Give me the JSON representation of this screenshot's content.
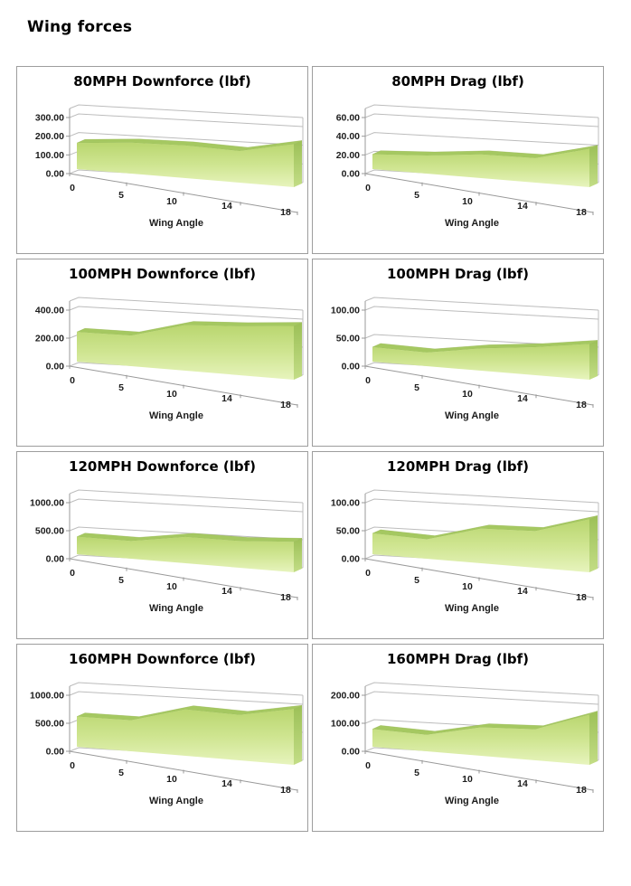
{
  "page": {
    "title": "Wing forces"
  },
  "colors": {
    "area_front_top": "#b9d66f",
    "area_front_mid": "#cfe591",
    "area_front_bottom": "#e7f4bd",
    "area_bevel": "#a5c861",
    "area_side_dark": "#9cc057",
    "area_side_light": "#c3dd86",
    "area_edge": "#8fae4d",
    "gridline": "#bcbcbc",
    "axis": "#999999",
    "chart_border": "#9d9d9d",
    "text": "#1c1c1c"
  },
  "chart_data": [
    {
      "type": "area",
      "style": "3d",
      "title": "80MPH Downforce (lbf)",
      "xlabel": "Wing Angle",
      "categories": [
        "0",
        "5",
        "10",
        "14",
        "18"
      ],
      "x_values": [
        0,
        5,
        10,
        14,
        18
      ],
      "values": [
        150,
        163,
        158,
        142,
        180
      ],
      "ylim": [
        0,
        300
      ],
      "yticks": [
        0,
        100,
        200,
        300
      ],
      "ytick_labels": [
        "0.00",
        "100.00",
        "200.00",
        "300.00"
      ],
      "grid": true,
      "legend": false
    },
    {
      "type": "area",
      "style": "3d",
      "title": "80MPH Drag (lbf)",
      "xlabel": "Wing Angle",
      "categories": [
        "0",
        "5",
        "10",
        "14",
        "18"
      ],
      "x_values": [
        0,
        5,
        10,
        14,
        18
      ],
      "values": [
        17,
        19,
        23,
        22,
        32
      ],
      "ylim": [
        0,
        60
      ],
      "yticks": [
        0,
        20,
        40,
        60
      ],
      "ytick_labels": [
        "0.00",
        "20.00",
        "40.00",
        "60.00"
      ],
      "grid": true,
      "legend": false
    },
    {
      "type": "area",
      "style": "3d",
      "title": "100MPH Downforce (lbf)",
      "xlabel": "Wing Angle",
      "categories": [
        "0",
        "5",
        "10",
        "14",
        "18"
      ],
      "x_values": [
        0,
        5,
        10,
        14,
        18
      ],
      "values": [
        228,
        215,
        295,
        293,
        300
      ],
      "ylim": [
        0,
        400
      ],
      "yticks": [
        0,
        200,
        400
      ],
      "ytick_labels": [
        "0.00",
        "200.00",
        "400.00"
      ],
      "grid": true,
      "legend": false
    },
    {
      "type": "area",
      "style": "3d",
      "title": "100MPH Drag (lbf)",
      "xlabel": "Wing Angle",
      "categories": [
        "0",
        "5",
        "10",
        "14",
        "18"
      ],
      "x_values": [
        0,
        5,
        10,
        14,
        18
      ],
      "values": [
        28,
        24,
        36,
        42,
        50
      ],
      "ylim": [
        0,
        100
      ],
      "yticks": [
        0,
        50,
        100
      ],
      "ytick_labels": [
        "0.00",
        "50.00",
        "100.00"
      ],
      "grid": true,
      "legend": false
    },
    {
      "type": "area",
      "style": "3d",
      "title": "120MPH Downforce (lbf)",
      "xlabel": "Wing Angle",
      "categories": [
        "0",
        "5",
        "10",
        "14",
        "18"
      ],
      "x_values": [
        0,
        5,
        10,
        14,
        18
      ],
      "values": [
        335,
        312,
        425,
        400,
        425
      ],
      "ylim": [
        0,
        1000
      ],
      "yticks": [
        0,
        500,
        1000
      ],
      "ytick_labels": [
        "0.00",
        "500.00",
        "1000.00"
      ],
      "grid": true,
      "legend": false
    },
    {
      "type": "area",
      "style": "3d",
      "title": "120MPH Drag (lbf)",
      "xlabel": "Wing Angle",
      "categories": [
        "0",
        "5",
        "10",
        "14",
        "18"
      ],
      "x_values": [
        0,
        5,
        10,
        14,
        18
      ],
      "values": [
        40,
        34,
        56,
        55,
        74
      ],
      "ylim": [
        0,
        100
      ],
      "yticks": [
        0,
        50,
        100
      ],
      "ytick_labels": [
        "0.00",
        "50.00",
        "100.00"
      ],
      "grid": true,
      "legend": false
    },
    {
      "type": "area",
      "style": "3d",
      "title": "160MPH Downforce (lbf)",
      "xlabel": "Wing Angle",
      "categories": [
        "0",
        "5",
        "10",
        "14",
        "18"
      ],
      "x_values": [
        0,
        5,
        10,
        14,
        18
      ],
      "values": [
        580,
        545,
        750,
        680,
        780
      ],
      "ylim": [
        0,
        1000
      ],
      "yticks": [
        0,
        500,
        1000
      ],
      "ytick_labels": [
        "0.00",
        "500.00",
        "1000.00"
      ],
      "grid": true,
      "legend": false
    },
    {
      "type": "area",
      "style": "3d",
      "title": "160MPH Drag (lbf)",
      "xlabel": "Wing Angle",
      "categories": [
        "0",
        "5",
        "10",
        "14",
        "18"
      ],
      "x_values": [
        0,
        5,
        10,
        14,
        18
      ],
      "values": [
        68,
        58,
        92,
        93,
        140
      ],
      "ylim": [
        0,
        200
      ],
      "yticks": [
        0,
        100,
        200
      ],
      "ytick_labels": [
        "0.00",
        "100.00",
        "200.00"
      ],
      "grid": true,
      "legend": false
    }
  ]
}
